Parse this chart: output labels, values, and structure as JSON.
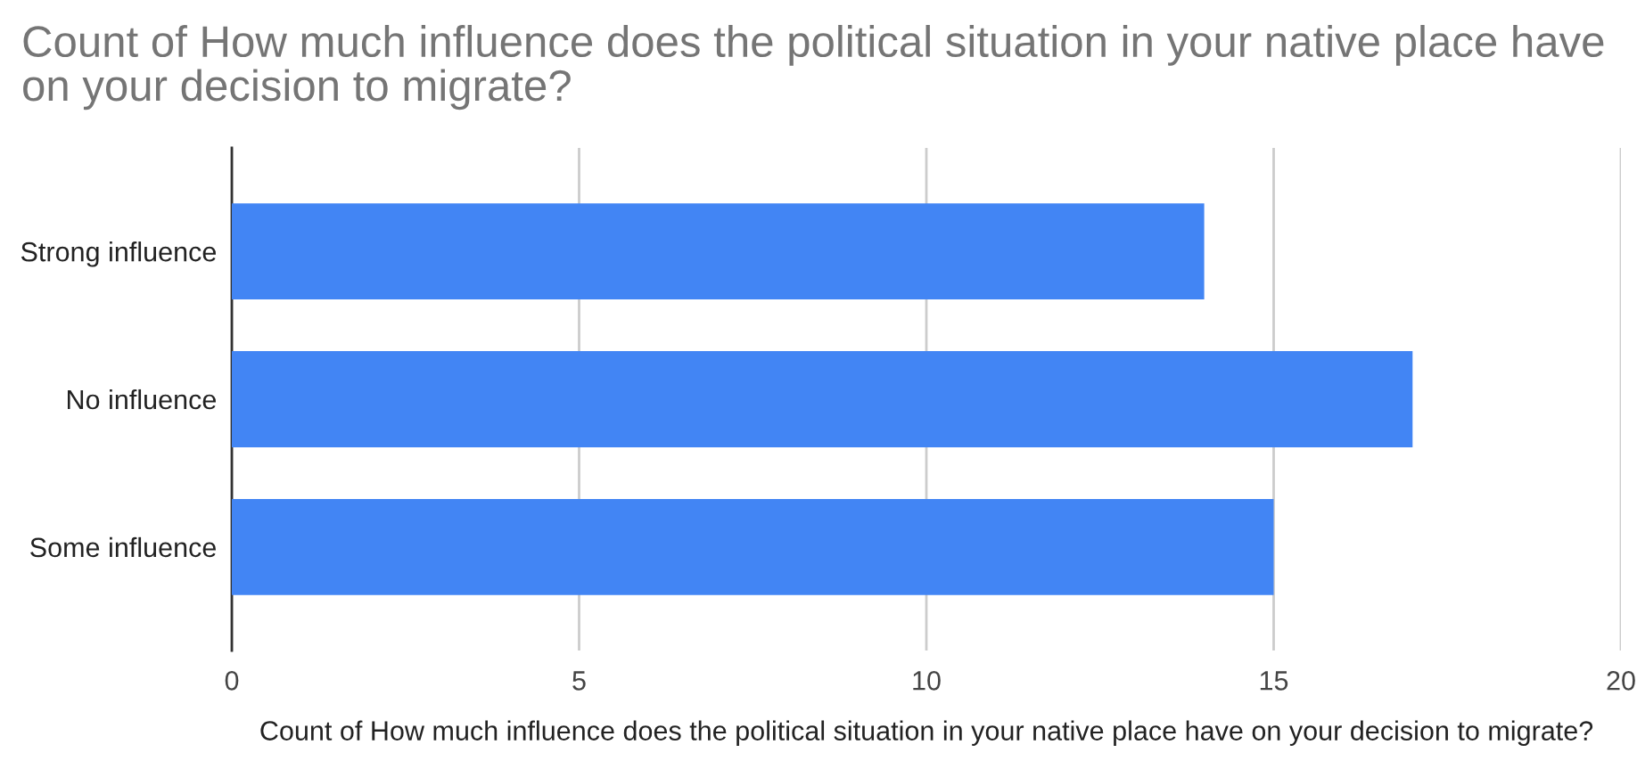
{
  "chart_data": {
    "type": "bar",
    "orientation": "horizontal",
    "title": "Count of How much influence does the political situation in your native place have on your decision to migrate?",
    "xlabel": "Count of How much influence does the political situation in your native place have on your decision to migrate?",
    "categories": [
      "Strong influence",
      "No influence",
      "Some influence"
    ],
    "values": [
      14,
      17,
      15
    ],
    "color": "#4285f4",
    "xlim": [
      0,
      20
    ],
    "xticks": [
      0,
      5,
      10,
      15,
      20
    ],
    "grid": "x",
    "legend": false
  }
}
